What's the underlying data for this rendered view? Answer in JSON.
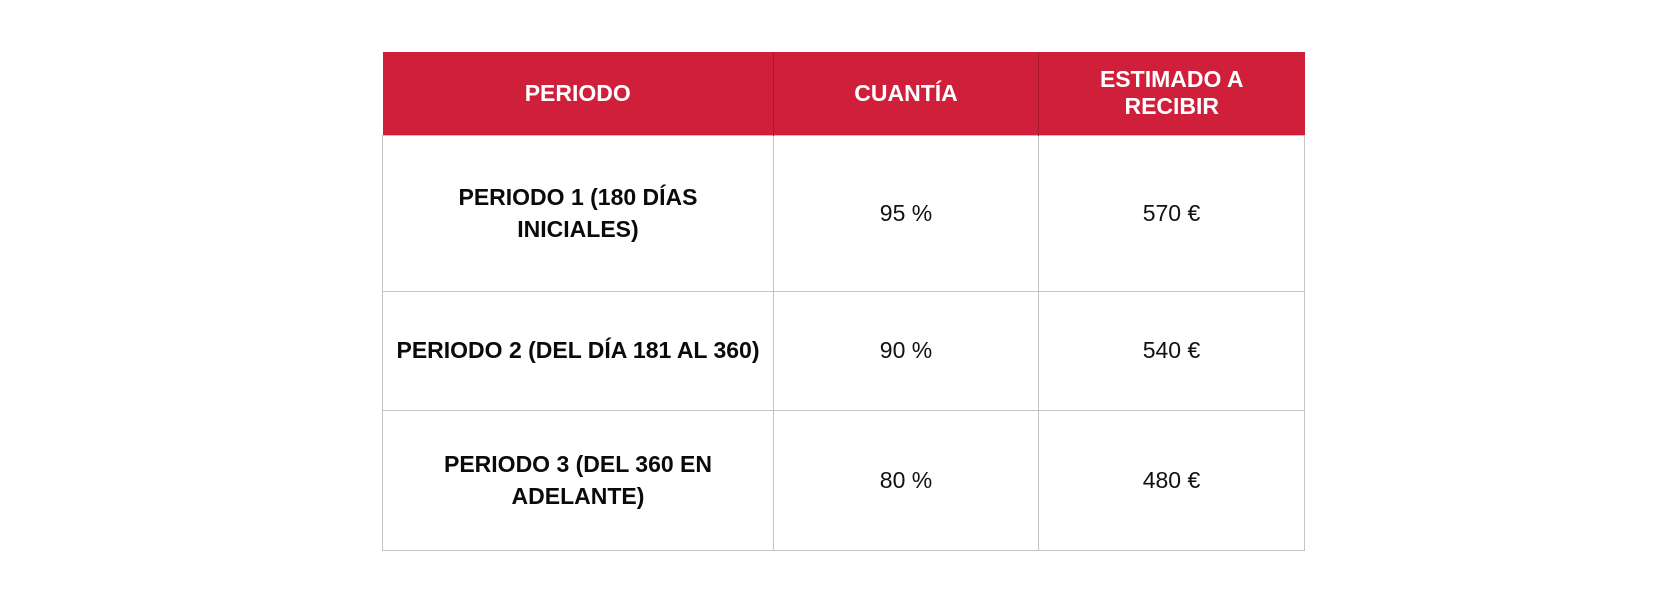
{
  "table": {
    "headers": [
      "PERIODO",
      "CUANTÍA",
      "ESTIMADO A RECIBIR"
    ],
    "rows": [
      {
        "periodo": "PERIODO 1 (180 DÍAS INICIALES)",
        "cuantia": "95 %",
        "estimado": "570 €"
      },
      {
        "periodo": "PERIODO 2 (DEL DÍA 181 AL 360)",
        "cuantia": "90 %",
        "estimado": "540 €"
      },
      {
        "periodo": "PERIODO 3 (DEL 360 EN ADELANTE)",
        "cuantia": "80 %",
        "estimado": "480 €"
      }
    ]
  },
  "colors": {
    "header_background": "#d01f3a",
    "header_text": "#ffffff",
    "border": "#c4c4c4"
  }
}
